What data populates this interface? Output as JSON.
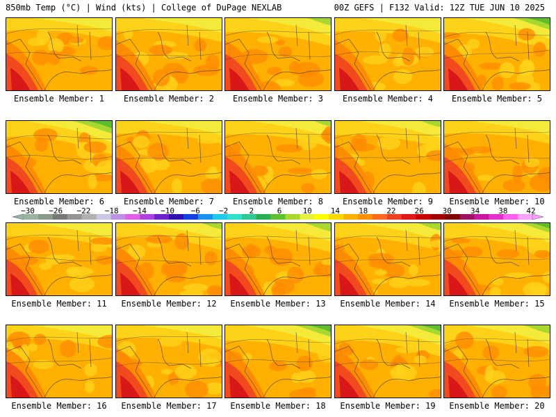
{
  "header": {
    "left": "850mb Temp (°C) | Wind (kts) | College of DuPage NEXLAB",
    "right": "00Z GEFS | F132 Valid: 12Z TUE JUN 10 2025"
  },
  "colorbar": {
    "labels": [
      "−30",
      "−26",
      "−22",
      "−18",
      "−14",
      "−10",
      "−6",
      "−2",
      "2",
      "6",
      "10",
      "14",
      "18",
      "22",
      "26",
      "30",
      "34",
      "38",
      "42"
    ],
    "colors": [
      "#9bb3a4",
      "#8c9a8e",
      "#787878",
      "#949494",
      "#b0b0b0",
      "#c8c8e6",
      "#c090e8",
      "#e060e8",
      "#b040e0",
      "#7020c8",
      "#3010b0",
      "#1040e0",
      "#1890f0",
      "#20c8f0",
      "#30e0c8",
      "#30c890",
      "#28b050",
      "#60c030",
      "#a8d830",
      "#e8f040",
      "#ffff00",
      "#ffd800",
      "#ffb000",
      "#ff9000",
      "#ff6820",
      "#f04020",
      "#e01818",
      "#c80000",
      "#a00000",
      "#800000",
      "#a01060",
      "#c818a0",
      "#e030d0",
      "#ff60f0",
      "#ffa0ff"
    ]
  },
  "members": [
    {
      "label": "Ensemble Member: 1",
      "warmth": 0.82,
      "cool_corner": 0.05
    },
    {
      "label": "Ensemble Member: 2",
      "warmth": 0.85,
      "cool_corner": 0.15
    },
    {
      "label": "Ensemble Member: 3",
      "warmth": 0.8,
      "cool_corner": 0.35
    },
    {
      "label": "Ensemble Member: 4",
      "warmth": 0.85,
      "cool_corner": 0.2
    },
    {
      "label": "Ensemble Member: 5",
      "warmth": 0.7,
      "cool_corner": 0.55
    },
    {
      "label": "Ensemble Member: 6",
      "warmth": 0.78,
      "cool_corner": 0.6
    },
    {
      "label": "Ensemble Member: 7",
      "warmth": 0.78,
      "cool_corner": 0.1
    },
    {
      "label": "Ensemble Member: 8",
      "warmth": 0.85,
      "cool_corner": 0.25
    },
    {
      "label": "Ensemble Member: 9",
      "warmth": 0.75,
      "cool_corner": 0.3
    },
    {
      "label": "Ensemble Member: 10",
      "warmth": 0.8,
      "cool_corner": 0.1
    },
    {
      "label": "Ensemble Member: 11",
      "warmth": 0.72,
      "cool_corner": 0.2
    },
    {
      "label": "Ensemble Member: 12",
      "warmth": 0.82,
      "cool_corner": 0.3
    },
    {
      "label": "Ensemble Member: 13",
      "warmth": 0.75,
      "cool_corner": 0.4
    },
    {
      "label": "Ensemble Member: 14",
      "warmth": 0.78,
      "cool_corner": 0.35
    },
    {
      "label": "Ensemble Member: 15",
      "warmth": 0.8,
      "cool_corner": 0.45
    },
    {
      "label": "Ensemble Member: 16",
      "warmth": 0.8,
      "cool_corner": 0.2
    },
    {
      "label": "Ensemble Member: 17",
      "warmth": 0.78,
      "cool_corner": 0.1
    },
    {
      "label": "Ensemble Member: 18",
      "warmth": 0.8,
      "cool_corner": 0.55
    },
    {
      "label": "Ensemble Member: 19",
      "warmth": 0.82,
      "cool_corner": 0.5
    },
    {
      "label": "Ensemble Member: 20",
      "warmth": 0.78,
      "cool_corner": 0.4
    }
  ]
}
